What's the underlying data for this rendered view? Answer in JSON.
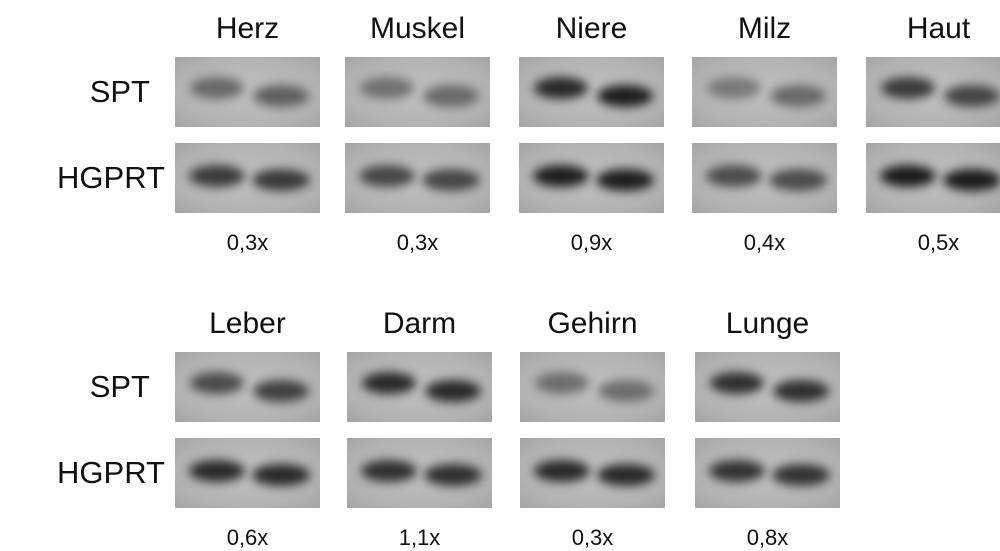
{
  "rows": [
    {
      "row_labels": [
        "SPT",
        "HGPRT"
      ],
      "panels": [
        {
          "tissue": "Herz",
          "ratio": "0,3x"
        },
        {
          "tissue": "Muskel",
          "ratio": "0,3x"
        },
        {
          "tissue": "Niere",
          "ratio": "0,9x"
        },
        {
          "tissue": "Milz",
          "ratio": "0,4x"
        },
        {
          "tissue": "Haut",
          "ratio": "0,5x"
        }
      ]
    },
    {
      "row_labels": [
        "SPT",
        "HGPRT"
      ],
      "panels": [
        {
          "tissue": "Leber",
          "ratio": "0,6x"
        },
        {
          "tissue": "Darm",
          "ratio": "1,1x"
        },
        {
          "tissue": "Gehirn",
          "ratio": "0,3x"
        },
        {
          "tissue": "Lunge",
          "ratio": "0,8x"
        }
      ]
    }
  ]
}
